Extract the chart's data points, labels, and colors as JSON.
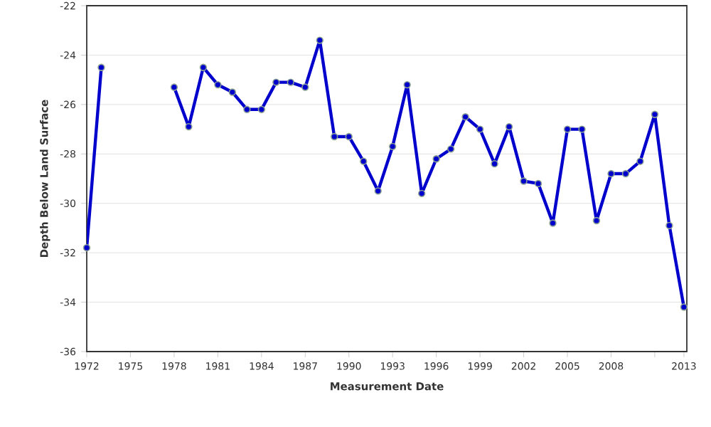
{
  "chart_data": {
    "type": "line",
    "xlabel": "Measurement Date",
    "ylabel": "Depth Below Land Surface",
    "x": [
      1972,
      1973,
      1975,
      1978,
      1979,
      1980,
      1981,
      1982,
      1983,
      1984,
      1985,
      1986,
      1987,
      1988,
      1989,
      1990,
      1991,
      1992,
      1993,
      1994,
      1995,
      1996,
      1997,
      1998,
      1999,
      2000,
      2001,
      2002,
      2003,
      2004,
      2005,
      2006,
      2007,
      2008,
      2009,
      2010,
      2011,
      2012,
      2013
    ],
    "series": [
      {
        "color": "#0000cc",
        "values": [
          -31.8,
          -24.5,
          null,
          -25.3,
          -26.9,
          -24.5,
          -25.2,
          -25.5,
          -26.2,
          -26.2,
          -25.1,
          -25.1,
          -25.3,
          -23.4,
          -27.3,
          -27.3,
          -28.3,
          -29.5,
          -27.7,
          -25.2,
          -29.6,
          -28.2,
          -27.8,
          -26.5,
          -27.0,
          -28.4,
          -26.9,
          -29.1,
          -29.2,
          -30.8,
          -27.0,
          -27.0,
          -30.7,
          -28.8,
          -28.8,
          -28.3,
          -26.4,
          -30.9,
          -34.2
        ]
      }
    ],
    "xlim": [
      1972,
      2013.2
    ],
    "ylim": [
      -36,
      -22
    ],
    "xticks": [
      1972,
      1975,
      1978,
      1981,
      1984,
      1987,
      1990,
      1993,
      1996,
      1999,
      2002,
      2005,
      2008,
      {
        "value": 2011,
        "label": null
      },
      2013
    ],
    "yticks": [
      -36,
      -34,
      -32,
      -30,
      -28,
      -26,
      -24,
      -22
    ],
    "grid": "y",
    "marker": "circle",
    "line_style": "solid"
  }
}
